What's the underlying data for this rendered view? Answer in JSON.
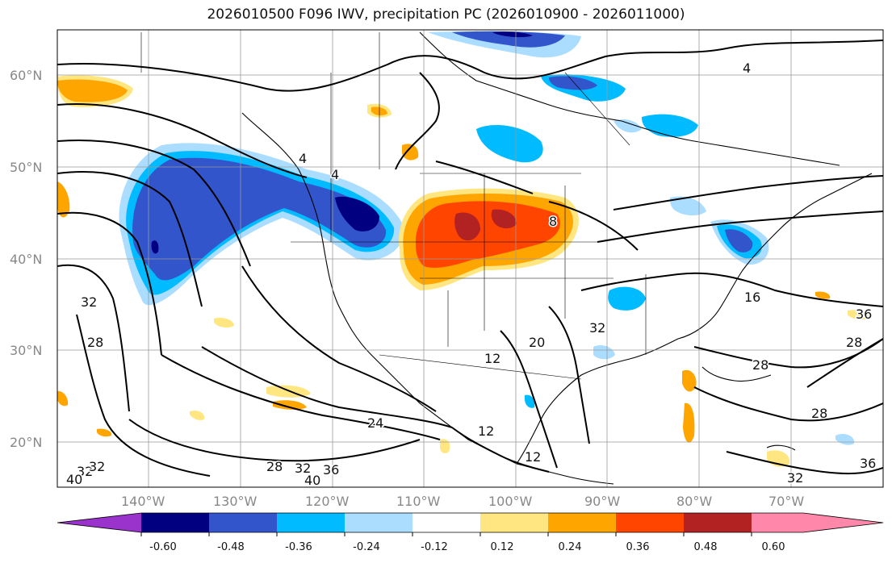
{
  "title": "2026010500 F096 IWV, precipitation PC (2026010900 - 2026011000)",
  "map": {
    "lat_labels": [
      "60°N",
      "50°N",
      "40°N",
      "30°N",
      "20°N"
    ],
    "lon_labels": [
      "140°W",
      "130°W",
      "120°W",
      "110°W",
      "100°W",
      "90°W",
      "80°W",
      "70°W"
    ],
    "contour_labels": [
      "4",
      "4",
      "4",
      "8",
      "16",
      "32",
      "28",
      "28",
      "28",
      "28",
      "24",
      "12",
      "12",
      "12",
      "28",
      "32",
      "36",
      "40",
      "32",
      "32",
      "40",
      "36",
      "32",
      "36",
      "20",
      "32"
    ]
  },
  "colorbar": {
    "tick_labels": [
      "-0.60",
      "-0.48",
      "-0.36",
      "-0.24",
      "-0.12",
      "0.12",
      "0.24",
      "0.36",
      "0.48",
      "0.60"
    ],
    "colors": {
      "under": "#9933cc",
      "c1": "#000080",
      "c2": "#3355cc",
      "c3": "#00bbff",
      "c4": "#aaddff",
      "c5": "#ffffff",
      "c6": "#ffe680",
      "c7": "#ffa500",
      "c8": "#ff4500",
      "c9": "#b22222",
      "over": "#ff88aa"
    }
  }
}
